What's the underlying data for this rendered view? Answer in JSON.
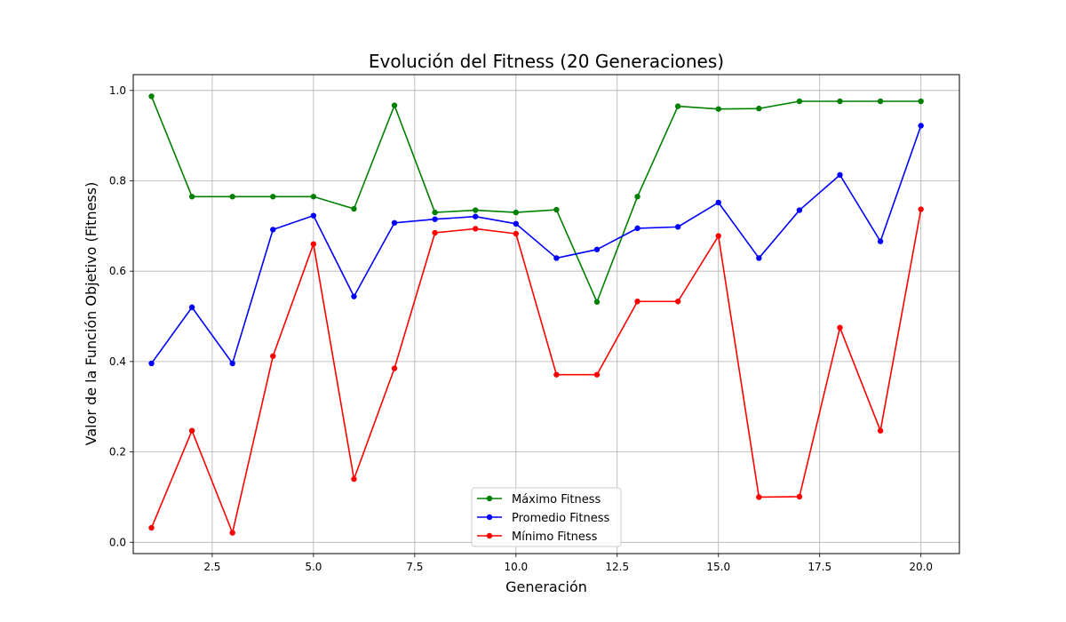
{
  "chart_data": {
    "type": "line",
    "title": "Evolución del Fitness (20 Generaciones)",
    "xlabel": "Generación",
    "ylabel": "Valor de la Función Objetivo (Fitness)",
    "xlim": [
      0.55,
      20.95
    ],
    "ylim": [
      -0.025,
      1.035
    ],
    "xticks": [
      2.5,
      5.0,
      7.5,
      10.0,
      12.5,
      15.0,
      17.5,
      20.0
    ],
    "xtick_labels": [
      "2.5",
      "5.0",
      "7.5",
      "10.0",
      "12.5",
      "15.0",
      "17.5",
      "20.0"
    ],
    "yticks": [
      0.0,
      0.2,
      0.4,
      0.6,
      0.8,
      1.0
    ],
    "ytick_labels": [
      "0.0",
      "0.2",
      "0.4",
      "0.6",
      "0.8",
      "1.0"
    ],
    "grid": true,
    "legend_position": "bottom-center",
    "x": [
      1,
      2,
      3,
      4,
      5,
      6,
      7,
      8,
      9,
      10,
      11,
      12,
      13,
      14,
      15,
      16,
      17,
      18,
      19,
      20
    ],
    "series": [
      {
        "name": "Máximo Fitness",
        "color": "#008000",
        "values": [
          0.987,
          0.765,
          0.765,
          0.765,
          0.765,
          0.738,
          0.967,
          0.73,
          0.735,
          0.73,
          0.736,
          0.532,
          0.765,
          0.965,
          0.959,
          0.96,
          0.976,
          0.976,
          0.976,
          0.976
        ]
      },
      {
        "name": "Promedio Fitness",
        "color": "#0000ff",
        "values": [
          0.396,
          0.52,
          0.396,
          0.692,
          0.723,
          0.544,
          0.707,
          0.715,
          0.721,
          0.705,
          0.629,
          0.648,
          0.695,
          0.698,
          0.752,
          0.629,
          0.735,
          0.813,
          0.666,
          0.922
        ]
      },
      {
        "name": "Mínimo Fitness",
        "color": "#ff0000",
        "values": [
          0.032,
          0.247,
          0.021,
          0.412,
          0.66,
          0.14,
          0.385,
          0.685,
          0.694,
          0.683,
          0.371,
          0.371,
          0.533,
          0.533,
          0.678,
          0.1,
          0.101,
          0.475,
          0.247,
          0.737
        ]
      }
    ]
  }
}
